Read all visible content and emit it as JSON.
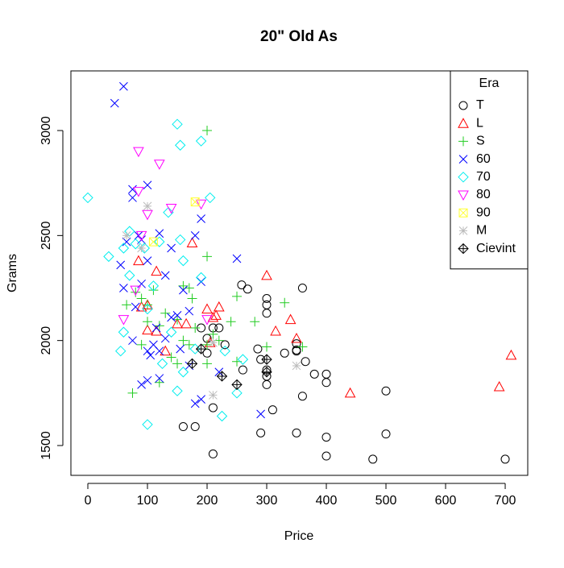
{
  "chart_data": {
    "type": "scatter",
    "title": "20\" Old As",
    "x_label": "Price",
    "y_label": "Grams",
    "xlim": [
      -28.4,
      737.8
    ],
    "ylim": [
      1358,
      3284
    ],
    "xticks": [
      0,
      100,
      200,
      300,
      400,
      500,
      600,
      700
    ],
    "yticks": [
      1500,
      2000,
      2500,
      3000
    ],
    "legend": {
      "title": "Era",
      "position": "topright"
    },
    "series": [
      {
        "name": "T",
        "color": "#000000",
        "marker": "circle",
        "x": [
          300,
          300,
          300,
          360,
          258,
          268,
          310,
          350,
          290,
          400,
          400,
          478,
          500,
          500,
          700,
          360,
          380,
          400,
          400,
          350,
          350,
          300,
          300,
          285,
          290,
          230,
          210,
          220,
          200,
          200,
          210,
          210,
          160,
          180,
          190,
          260,
          330,
          365,
          300,
          350
        ],
        "y": [
          2200,
          2170,
          2130,
          2250,
          2265,
          2245,
          1670,
          1560,
          1560,
          1540,
          1450,
          1435,
          1555,
          1760,
          1435,
          1735,
          1840,
          1840,
          1800,
          1955,
          1985,
          1830,
          1790,
          1960,
          1910,
          1980,
          2060,
          2060,
          2010,
          1940,
          1680,
          1460,
          1590,
          1590,
          2060,
          1860,
          1940,
          1900,
          1860,
          1950
        ]
      },
      {
        "name": "L",
        "color": "#ff0000",
        "marker": "triangle",
        "x": [
          710,
          690,
          440,
          300,
          340,
          350,
          315,
          220,
          200,
          210,
          215,
          175,
          115,
          85,
          90,
          100,
          150,
          165,
          130,
          205,
          100,
          115
        ],
        "y": [
          1930,
          1780,
          1750,
          2310,
          2100,
          2010,
          2045,
          2160,
          2150,
          2110,
          2120,
          2465,
          2330,
          2380,
          2160,
          2170,
          2080,
          2080,
          1950,
          1990,
          2050,
          2045
        ]
      },
      {
        "name": "S",
        "color": "#22cc22",
        "marker": "plus",
        "x": [
          200,
          200,
          250,
          330,
          300,
          280,
          360,
          240,
          150,
          160,
          170,
          130,
          110,
          100,
          90,
          80,
          65,
          100,
          120,
          150,
          200,
          75,
          120,
          90,
          140,
          220,
          175,
          160,
          250,
          170,
          180,
          200,
          210
        ],
        "y": [
          3000,
          2400,
          2210,
          2180,
          1970,
          2090,
          1970,
          2090,
          2100,
          2260,
          2250,
          2130,
          2240,
          2170,
          2200,
          2230,
          2170,
          2090,
          2070,
          1890,
          1890,
          1750,
          1800,
          1980,
          1920,
          2000,
          2200,
          2000,
          1900,
          1980,
          2060,
          1980,
          2030
        ]
      },
      {
        "name": "60",
        "color": "#0000ff",
        "marker": "x",
        "x": [
          60,
          45,
          100,
          75,
          85,
          90,
          65,
          120,
          140,
          180,
          190,
          250,
          55,
          60,
          80,
          90,
          100,
          130,
          140,
          150,
          170,
          190,
          160,
          75,
          100,
          110,
          120,
          130,
          100,
          90,
          120,
          180,
          190,
          290,
          220,
          170,
          105,
          115,
          155,
          75
        ],
        "y": [
          3210,
          3130,
          2740,
          2720,
          2500,
          2480,
          2470,
          2510,
          2440,
          2500,
          2580,
          2390,
          2360,
          2250,
          2160,
          2270,
          2380,
          2310,
          2110,
          2120,
          2140,
          2280,
          2240,
          2000,
          1950,
          1980,
          1950,
          2010,
          1810,
          1790,
          1820,
          1700,
          1720,
          1650,
          1850,
          1880,
          1930,
          2060,
          1960,
          2680
        ]
      },
      {
        "name": "70",
        "color": "#00eeee",
        "marker": "diamond",
        "x": [
          0,
          150,
          155,
          190,
          205,
          135,
          70,
          80,
          35,
          60,
          95,
          160,
          155,
          190,
          120,
          70,
          60,
          55,
          100,
          150,
          225,
          250,
          260,
          230,
          160,
          125,
          140,
          180,
          100,
          110
        ],
        "y": [
          2680,
          3030,
          2930,
          2950,
          2680,
          2610,
          2520,
          2460,
          2400,
          2440,
          2440,
          2380,
          2480,
          2300,
          2470,
          2310,
          2040,
          1950,
          1600,
          1760,
          1640,
          1750,
          1910,
          1950,
          1850,
          1890,
          2040,
          1960,
          2150,
          2260
        ]
      },
      {
        "name": "80",
        "color": "#ff00ff",
        "marker": "downtriangle",
        "x": [
          85,
          120,
          85,
          100,
          140,
          90,
          60,
          80,
          200,
          190
        ],
        "y": [
          2900,
          2840,
          2710,
          2600,
          2630,
          2500,
          2100,
          2240,
          2100,
          2650
        ]
      },
      {
        "name": "90",
        "color": "#ffff33",
        "marker": "squarex",
        "x": [
          110,
          180
        ],
        "y": [
          2470,
          2660
        ]
      },
      {
        "name": "M",
        "color": "#bbbbbb",
        "marker": "asterisk",
        "x": [
          65,
          100,
          90,
          350,
          210,
          210
        ],
        "y": [
          2500,
          2640,
          2440,
          1880,
          1990,
          1740
        ]
      },
      {
        "name": "Cievint",
        "color": "#000000",
        "marker": "diamondplus",
        "x": [
          300,
          300,
          250,
          225,
          175,
          190
        ],
        "y": [
          1910,
          1850,
          1790,
          1830,
          1890,
          1960
        ]
      }
    ]
  }
}
